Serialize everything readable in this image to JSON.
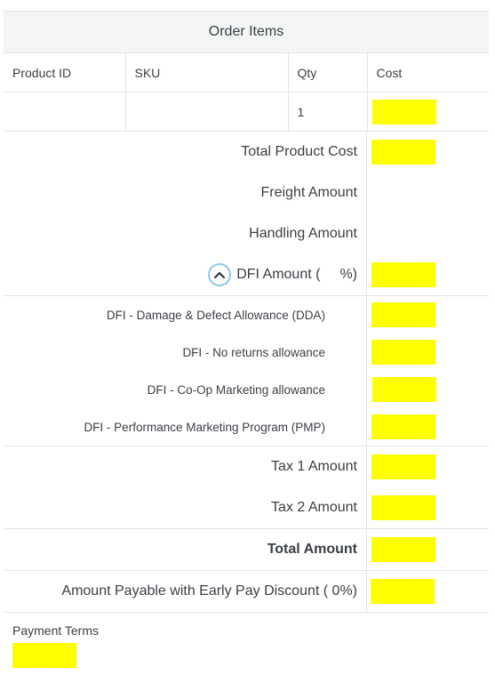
{
  "title": "Order Items",
  "table": {
    "headers": [
      "Product ID",
      "SKU",
      "Qty",
      "Cost"
    ],
    "rows": [
      {
        "product_id": "",
        "sku": "",
        "qty": "1",
        "cost": ""
      }
    ]
  },
  "summary": {
    "total_product_cost": "Total Product Cost",
    "freight_amount": "Freight Amount",
    "handling_amount": "Handling Amount",
    "dfi_amount_prefix": "DFI Amount (",
    "dfi_amount_suffix": "%)"
  },
  "dfi_items": [
    "DFI - Damage & Defect Allowance (DDA)",
    "DFI - No returns allowance",
    "DFI - Co-Op Marketing allowance",
    "DFI - Performance Marketing Program (PMP)"
  ],
  "taxes": {
    "tax1": "Tax 1 Amount",
    "tax2": "Tax 2 Amount"
  },
  "total_amount": "Total Amount",
  "early_pay": "Amount Payable with Early Pay Discount ( 0%)",
  "payment_terms": "Payment Terms",
  "colors": {
    "highlight": "#ffff00",
    "border": "#e3e5e6",
    "header_bg": "#f4f5f5",
    "chevron": "#8fc8ef"
  },
  "icons": {
    "collapse": "chevron-up-icon"
  }
}
